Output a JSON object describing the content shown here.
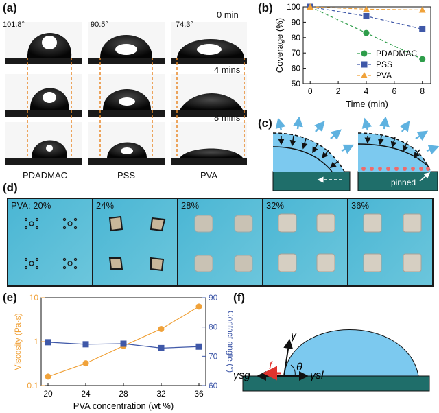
{
  "panel_labels": {
    "a": "(a)",
    "b": "(b)",
    "c": "(c)",
    "d": "(d)",
    "e": "(e)",
    "f": "(f)"
  },
  "panel_a": {
    "angles": [
      "101.8°",
      "90.5°",
      "74.3°"
    ],
    "times": [
      "0 min",
      "4 mins",
      "8 mins"
    ],
    "samples": [
      "PDADMAC",
      "PSS",
      "PVA"
    ]
  },
  "panel_c": {
    "pinned_label": "pinned"
  },
  "panel_d": {
    "tiles": [
      "PVA: 20%",
      "24%",
      "28%",
      "32%",
      "36%"
    ]
  },
  "panel_f": {
    "gamma": "γ",
    "gamma_sg": "γsg",
    "gamma_sl": "γsl",
    "theta": "θ",
    "friction": "f"
  },
  "chart_data": [
    {
      "type": "line",
      "title": "",
      "xlabel": "Time (min)",
      "ylabel": "Coverage (%)",
      "xlim": [
        -0.5,
        8.6
      ],
      "ylim": [
        50,
        100
      ],
      "x": [
        0,
        4,
        8
      ],
      "xticks": [
        "0",
        "2",
        "4",
        "6",
        "8"
      ],
      "yticks": [
        "50",
        "60",
        "70",
        "80",
        "90",
        "100"
      ],
      "legend_position": "bottom-right",
      "series": [
        {
          "name": "PDADMAC",
          "values": [
            100,
            83,
            66
          ],
          "color": "#2e9d4a",
          "marker": "circle"
        },
        {
          "name": "PSS",
          "values": [
            100,
            94,
            85.5
          ],
          "color": "#3f58a8",
          "marker": "square"
        },
        {
          "name": "PVA",
          "values": [
            100,
            98.5,
            98
          ],
          "color": "#f0a23a",
          "marker": "triangle"
        }
      ]
    },
    {
      "type": "line",
      "title": "",
      "xlabel": "PVA concentration (wt %)",
      "ylabel_left": "Viscosity (Pa·s)",
      "ylabel_right": "Contact angle (°)",
      "x": [
        20,
        24,
        28,
        32,
        36
      ],
      "xticks": [
        "20",
        "24",
        "28",
        "32",
        "36"
      ],
      "yticks_left": [
        "0.1",
        "1",
        "10"
      ],
      "yticks_right": [
        "60",
        "70",
        "80",
        "90"
      ],
      "yscale_left": "log",
      "ylim_left": [
        0.1,
        10
      ],
      "ylim_right": [
        60,
        90
      ],
      "series": [
        {
          "name": "Viscosity",
          "axis": "left",
          "values": [
            0.16,
            0.32,
            0.8,
            1.95,
            6.3
          ],
          "color": "#f0a23a",
          "marker": "circle"
        },
        {
          "name": "Contact angle",
          "axis": "right",
          "values": [
            74.8,
            74.1,
            74.3,
            72.8,
            73.3
          ],
          "color": "#3f58a8",
          "marker": "square"
        }
      ]
    }
  ]
}
